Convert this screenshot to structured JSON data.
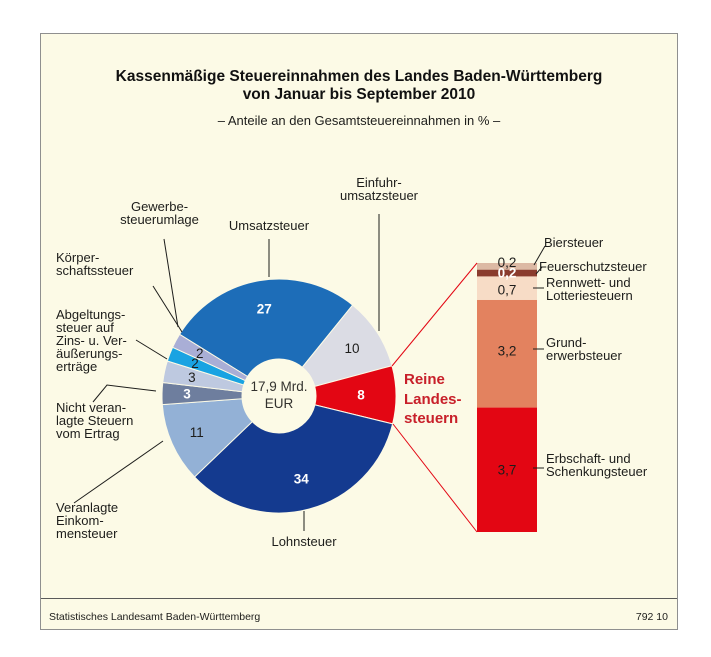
{
  "header": {
    "title_line1": "Kassenmäßige Steuereinnahmen des Landes Baden-Württemberg",
    "title_line2": "von Januar bis September 2010",
    "subtitle": "– Anteile an den Gesamtsteuereinnahmen in % –"
  },
  "pie_labels": {
    "umsatzsteuer": "Umsatzsteuer",
    "einfuhrumsatzsteuer": "Einfuhr-\numsatzsteuer",
    "gewerbesteuerumlage": "Gewerbe-\nsteuerumlage",
    "koerperschaftssteuer": "Körper-\nschaftssteuer",
    "abgeltungssteuer": "Abgeltungs-\nsteuer auf\nZins- u. Ver-\näußerungs-\nerträge",
    "nicht_veranlagte": "Nicht veran-\nlagte Steuern\nvom Ertrag",
    "veranlagte": "Veranlagte\nEinkom-\nmensteuer",
    "lohnsteuer": "Lohnsteuer",
    "hole_label": "17,9 Mrd.\nEUR"
  },
  "bar_labels": {
    "biersteuer": "Biersteuer",
    "feuerschutzsteuer": "Feuerschutzsteuer",
    "rennwett": "Rennwett- und\nLotteriesteuern",
    "grunderwerbsteuer": "Grund-\nerwerbsteuer",
    "erbschaft": "Erbschaft- und\nSchenkungsteuer",
    "highlight": "Reine\nLandes-\nsteuern"
  },
  "footer": {
    "source": "Statistisches Landesamt Baden-Württemberg",
    "code": "792 10"
  },
  "colors": {
    "background": "#fcfae6",
    "highlight_text": "#c8202a",
    "accent_red": "#e30613"
  },
  "chart_data": [
    {
      "type": "pie",
      "title": "Kassenmäßige Steuereinnahmen des Landes Baden-Württemberg von Januar bis September 2010",
      "subtitle": "Anteile an den Gesamtsteuereinnahmen in %",
      "unit": "%",
      "hole_label": "17,9 Mrd. EUR",
      "segments": [
        {
          "label": "Umsatzsteuer",
          "value": 27,
          "display": "27",
          "color": "#1d6db8",
          "value_style": "light"
        },
        {
          "label": "Einfuhrumsatzsteuer",
          "value": 10,
          "display": "10",
          "color": "#dbdce4",
          "value_style": "dark"
        },
        {
          "label": "Reine Landessteuern",
          "value": 8,
          "display": "8",
          "color": "#e30613",
          "value_style": "light"
        },
        {
          "label": "Lohnsteuer",
          "value": 34,
          "display": "34",
          "color": "#143a8f",
          "value_style": "light"
        },
        {
          "label": "Veranlagte Einkommensteuer",
          "value": 11,
          "display": "11",
          "color": "#93b1d6",
          "value_style": "dark"
        },
        {
          "label": "Nicht veranlagte Steuern vom Ertrag",
          "value": 3,
          "display": "3",
          "color": "#6e7e9e",
          "value_style": "light"
        },
        {
          "label": "Abgeltungssteuer auf Zins- u. Veräußerungserträge",
          "value": 3,
          "display": "3",
          "color": "#bec9e0",
          "value_style": "dark"
        },
        {
          "label": "Körperschaftssteuer",
          "value": 2,
          "display": "2",
          "color": "#19a3e2",
          "value_style": "dark"
        },
        {
          "label": "Gewerbesteuerumlage",
          "value": 2,
          "display": "2",
          "color": "#a9aed6",
          "value_style": "dark"
        }
      ]
    },
    {
      "type": "stacked-bar",
      "title": "Reine Landessteuern",
      "unit": "%",
      "total": 8,
      "segments": [
        {
          "label": "Biersteuer",
          "value": 0.2,
          "display": "0,2",
          "color": "#dcb9a4",
          "value_style": "dark"
        },
        {
          "label": "Feuerschutzsteuer",
          "value": 0.2,
          "display": "0,2",
          "color": "#8a3c2e",
          "value_style": "light"
        },
        {
          "label": "Rennwett- und Lotteriesteuern",
          "value": 0.7,
          "display": "0,7",
          "color": "#f7dcc6",
          "value_style": "dark"
        },
        {
          "label": "Grunderwerbsteuer",
          "value": 3.2,
          "display": "3,2",
          "color": "#e3825f",
          "value_style": "dark"
        },
        {
          "label": "Erbschaft- und Schenkungsteuer",
          "value": 3.7,
          "display": "3,7",
          "color": "#e30613",
          "value_style": "dark"
        }
      ]
    }
  ]
}
